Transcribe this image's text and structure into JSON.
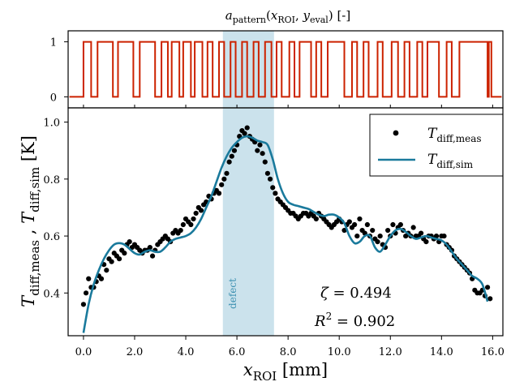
{
  "chart_data": [
    {
      "type": "line",
      "title": "a_pattern(x_ROI, y_eval) [-]",
      "title_parts": {
        "a": "a",
        "a_sub": "pattern",
        "open": "(",
        "x": "x",
        "x_sub": "ROI",
        "comma": ", ",
        "y": "y",
        "y_sub": "eval",
        "close": ") [-]"
      },
      "xlim": [
        -0.6,
        16.4
      ],
      "ylim": [
        -0.2,
        1.2
      ],
      "yticks": [
        0,
        1
      ],
      "ytick_labels": [
        "0",
        "1"
      ],
      "color": "#cc2200",
      "transitions": [
        0.0,
        0.3,
        0.55,
        1.15,
        1.35,
        1.95,
        2.2,
        2.8,
        3.05,
        3.3,
        3.45,
        3.75,
        3.9,
        4.2,
        4.35,
        4.65,
        4.85,
        5.05,
        5.3,
        5.5,
        5.75,
        5.95,
        6.2,
        6.4,
        6.65,
        6.85,
        7.1,
        7.35,
        7.55,
        7.75,
        8.05,
        8.25,
        8.45,
        8.9,
        9.1,
        9.3,
        9.55,
        10.2,
        10.5,
        10.7,
        10.95,
        11.15,
        11.5,
        11.7,
        12.05,
        12.3,
        12.55,
        12.75,
        13.05,
        13.25,
        13.45,
        13.9,
        14.2,
        14.4,
        14.7,
        15.8,
        15.85,
        15.95
      ],
      "start_level": 0
    },
    {
      "type": "scatter",
      "xlabel": "x_ROI [mm]",
      "xlabel_parts": {
        "x": "x",
        "sub": "ROI",
        "unit": " [mm]"
      },
      "ylabel": "T_diff,meas , T_diff,sim [K]",
      "ylabel_parts": {
        "t1": "T",
        "s1": "diff,meas",
        "sep": " , ",
        "t2": "T",
        "s2": "diff,sim",
        "unit": " [K]"
      },
      "xlim": [
        -0.6,
        16.4
      ],
      "ylim": [
        0.25,
        1.05
      ],
      "xticks": [
        0,
        2,
        4,
        6,
        8,
        10,
        12,
        14,
        16
      ],
      "xtick_labels": [
        "0.0",
        "2.0",
        "4.0",
        "6.0",
        "8.0",
        "10.0",
        "12.0",
        "14.0",
        "16.0"
      ],
      "yticks": [
        0.4,
        0.6,
        0.8,
        1.0
      ],
      "ytick_labels": [
        "0.4",
        "0.6",
        "0.8",
        "1.0"
      ],
      "shaded_region": {
        "x": [
          5.45,
          7.45
        ],
        "label": "defect",
        "color": "#a8cfe0"
      },
      "legend": {
        "position": "top-right",
        "entries": [
          {
            "symbol": "T",
            "sub": "diff,meas",
            "marker": "dot"
          },
          {
            "symbol": "T",
            "sub": "diff,sim",
            "marker": "line"
          }
        ]
      },
      "annotations": [
        {
          "lhs": "ζ",
          "rhs": " = 0.494"
        },
        {
          "lhs": "R",
          "sup": "2",
          "rhs": " = 0.902"
        }
      ],
      "series": [
        {
          "name": "T_diff,meas",
          "kind": "scatter",
          "color": "#000000",
          "x": [
            0.0,
            0.1,
            0.2,
            0.3,
            0.4,
            0.5,
            0.6,
            0.7,
            0.8,
            0.9,
            1.0,
            1.1,
            1.2,
            1.3,
            1.4,
            1.5,
            1.6,
            1.7,
            1.8,
            1.9,
            2.0,
            2.1,
            2.2,
            2.3,
            2.4,
            2.5,
            2.6,
            2.7,
            2.8,
            2.9,
            3.0,
            3.1,
            3.2,
            3.3,
            3.4,
            3.5,
            3.6,
            3.7,
            3.8,
            3.9,
            4.0,
            4.1,
            4.2,
            4.3,
            4.4,
            4.5,
            4.6,
            4.7,
            4.8,
            4.9,
            5.0,
            5.1,
            5.2,
            5.3,
            5.4,
            5.5,
            5.6,
            5.7,
            5.8,
            5.9,
            6.0,
            6.1,
            6.2,
            6.3,
            6.4,
            6.5,
            6.6,
            6.7,
            6.8,
            6.9,
            7.0,
            7.1,
            7.2,
            7.3,
            7.4,
            7.5,
            7.6,
            7.7,
            7.8,
            7.9,
            8.0,
            8.1,
            8.2,
            8.3,
            8.4,
            8.5,
            8.6,
            8.7,
            8.8,
            8.9,
            9.0,
            9.1,
            9.2,
            9.3,
            9.4,
            9.5,
            9.6,
            9.7,
            9.8,
            9.9,
            10.0,
            10.1,
            10.2,
            10.3,
            10.4,
            10.5,
            10.6,
            10.7,
            10.8,
            10.9,
            11.0,
            11.1,
            11.2,
            11.3,
            11.4,
            11.5,
            11.6,
            11.7,
            11.8,
            11.9,
            12.0,
            12.1,
            12.2,
            12.3,
            12.4,
            12.5,
            12.6,
            12.7,
            12.8,
            12.9,
            13.0,
            13.1,
            13.2,
            13.3,
            13.4,
            13.5,
            13.6,
            13.7,
            13.8,
            13.9,
            14.0,
            14.1,
            14.2,
            14.3,
            14.4,
            14.5,
            14.6,
            14.7,
            14.8,
            14.9,
            15.0,
            15.1,
            15.2,
            15.3,
            15.4,
            15.5,
            15.6,
            15.7,
            15.8,
            15.9
          ],
          "y": [
            0.36,
            0.4,
            0.45,
            0.42,
            0.42,
            0.44,
            0.46,
            0.45,
            0.5,
            0.48,
            0.52,
            0.51,
            0.54,
            0.53,
            0.52,
            0.55,
            0.54,
            0.57,
            0.58,
            0.56,
            0.57,
            0.56,
            0.55,
            0.54,
            0.55,
            0.55,
            0.56,
            0.53,
            0.55,
            0.57,
            0.58,
            0.59,
            0.6,
            0.59,
            0.58,
            0.61,
            0.62,
            0.61,
            0.62,
            0.64,
            0.66,
            0.65,
            0.64,
            0.66,
            0.68,
            0.7,
            0.69,
            0.71,
            0.72,
            0.74,
            0.73,
            0.75,
            0.76,
            0.75,
            0.78,
            0.8,
            0.82,
            0.86,
            0.88,
            0.9,
            0.92,
            0.95,
            0.97,
            0.96,
            0.98,
            0.95,
            0.94,
            0.93,
            0.9,
            0.92,
            0.89,
            0.86,
            0.82,
            0.8,
            0.77,
            0.75,
            0.73,
            0.72,
            0.71,
            0.7,
            0.69,
            0.68,
            0.68,
            0.67,
            0.66,
            0.67,
            0.68,
            0.68,
            0.67,
            0.68,
            0.67,
            0.66,
            0.68,
            0.67,
            0.66,
            0.65,
            0.64,
            0.63,
            0.64,
            0.65,
            0.66,
            0.65,
            0.62,
            0.64,
            0.65,
            0.63,
            0.64,
            0.6,
            0.66,
            0.62,
            0.61,
            0.64,
            0.6,
            0.62,
            0.59,
            0.58,
            0.6,
            0.57,
            0.56,
            0.62,
            0.6,
            0.64,
            0.61,
            0.63,
            0.64,
            0.62,
            0.6,
            0.61,
            0.6,
            0.63,
            0.6,
            0.6,
            0.61,
            0.59,
            0.58,
            0.6,
            0.6,
            0.59,
            0.6,
            0.58,
            0.6,
            0.6,
            0.57,
            0.56,
            0.55,
            0.53,
            0.52,
            0.51,
            0.5,
            0.49,
            0.48,
            0.47,
            0.45,
            0.41,
            0.4,
            0.4,
            0.41,
            0.39,
            0.42,
            0.38
          ]
        },
        {
          "name": "T_diff,sim",
          "kind": "line",
          "color": "#1a7a9c",
          "x": [
            0.0,
            0.2,
            0.4,
            0.6,
            0.8,
            1.0,
            1.2,
            1.4,
            1.6,
            1.8,
            2.0,
            2.2,
            2.4,
            2.6,
            2.8,
            3.0,
            3.2,
            3.4,
            3.6,
            3.8,
            4.0,
            4.2,
            4.4,
            4.6,
            4.8,
            5.0,
            5.2,
            5.4,
            5.6,
            5.8,
            6.0,
            6.2,
            6.4,
            6.6,
            6.8,
            7.0,
            7.2,
            7.4,
            7.6,
            7.8,
            8.0,
            8.2,
            8.4,
            8.6,
            8.8,
            9.0,
            9.2,
            9.4,
            9.6,
            9.8,
            10.0,
            10.2,
            10.4,
            10.6,
            10.8,
            11.0,
            11.2,
            11.4,
            11.6,
            11.8,
            12.0,
            12.2,
            12.4,
            12.6,
            12.8,
            13.0,
            13.2,
            13.4,
            13.6,
            13.8,
            14.0,
            14.2,
            14.4,
            14.6,
            14.8,
            15.0,
            15.2,
            15.4,
            15.6,
            15.8
          ],
          "y": [
            0.26,
            0.36,
            0.43,
            0.48,
            0.52,
            0.55,
            0.57,
            0.575,
            0.57,
            0.555,
            0.54,
            0.535,
            0.545,
            0.55,
            0.545,
            0.545,
            0.56,
            0.58,
            0.59,
            0.595,
            0.6,
            0.61,
            0.63,
            0.66,
            0.7,
            0.74,
            0.79,
            0.84,
            0.88,
            0.91,
            0.93,
            0.945,
            0.95,
            0.945,
            0.935,
            0.93,
            0.92,
            0.87,
            0.8,
            0.75,
            0.72,
            0.71,
            0.705,
            0.7,
            0.695,
            0.685,
            0.675,
            0.67,
            0.675,
            0.675,
            0.665,
            0.645,
            0.6,
            0.575,
            0.58,
            0.6,
            0.6,
            0.56,
            0.545,
            0.57,
            0.6,
            0.62,
            0.625,
            0.615,
            0.6,
            0.59,
            0.595,
            0.6,
            0.595,
            0.59,
            0.585,
            0.57,
            0.545,
            0.52,
            0.5,
            0.48,
            0.46,
            0.45,
            0.43,
            0.37
          ]
        }
      ]
    }
  ]
}
